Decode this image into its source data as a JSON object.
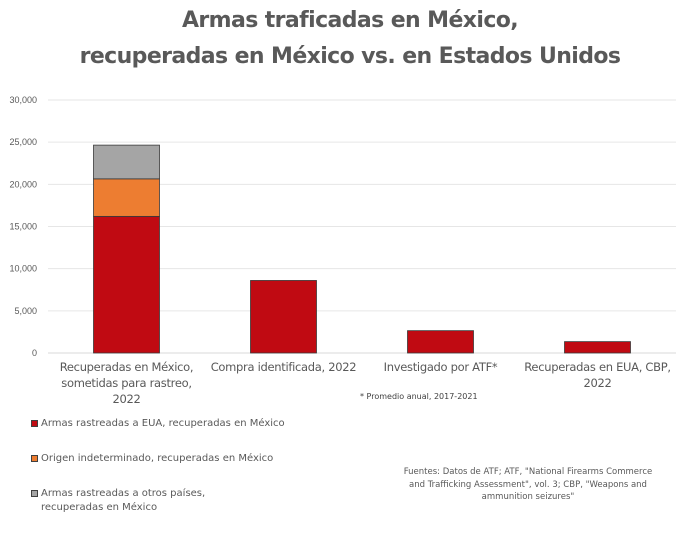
{
  "chart_data": {
    "type": "bar",
    "stacked": true,
    "title": "Armas traficadas en México, recuperadas en México vs. en Estados Unidos",
    "title_lines": [
      "Armas traficadas en México,",
      "recuperadas en México vs. en Estados Unidos"
    ],
    "xlabel": "",
    "ylabel": "",
    "ylim": [
      0,
      30000
    ],
    "yticks": [
      0,
      5000,
      10000,
      15000,
      20000,
      25000,
      30000
    ],
    "ytick_labels": [
      "0",
      "5,000",
      "10,000",
      "15,000",
      "20,000",
      "25,000",
      "30,000"
    ],
    "grid": true,
    "categories": [
      [
        "Recuperadas en México,",
        "sometidas para rastreo, 2022"
      ],
      [
        "Compra identificada, 2022"
      ],
      [
        "Investigado por ATF*"
      ],
      [
        "Recuperadas en EUA, CBP,",
        "2022"
      ]
    ],
    "series": [
      {
        "name": "Armas rastreadas a EUA, recuperadas en México",
        "color": "#c00a12",
        "values": [
          16200,
          8600,
          2650,
          1350
        ]
      },
      {
        "name": "Origen indeterminado, recuperadas en México",
        "color": "#ed7d31",
        "values": [
          4450,
          0,
          0,
          0
        ]
      },
      {
        "name": "Armas rastreadas a otros países, recuperadas en México",
        "color": "#a5a5a5",
        "values": [
          4000,
          0,
          0,
          0
        ]
      }
    ],
    "legend_position": "bottom-left",
    "annotations": [
      "* Promedio anual, 2017-2021"
    ],
    "source": "Fuentes: Datos de ATF; ATF, \"National  Firearms Commerce and Trafficking Assessment\", vol. 3; CBP, \"Weapons and ammunition seizures\""
  },
  "legend": [
    {
      "label": "Armas rastreadas a EUA, recuperadas en México",
      "color": "#c00a12"
    },
    {
      "label": "Origen indeterminado, recuperadas en México",
      "color": "#ed7d31"
    },
    {
      "label": "Armas rastreadas a otros países, recuperadas en México",
      "color": "#a5a5a5"
    }
  ],
  "note": "* Promedio anual, 2017-2021",
  "sources_line1": "Fuentes: Datos de ATF; ATF, \"National  Firearms Commerce",
  "sources_line2": "and Trafficking Assessment\", vol. 3; CBP, \"Weapons and",
  "sources_line3": "ammunition seizures\""
}
